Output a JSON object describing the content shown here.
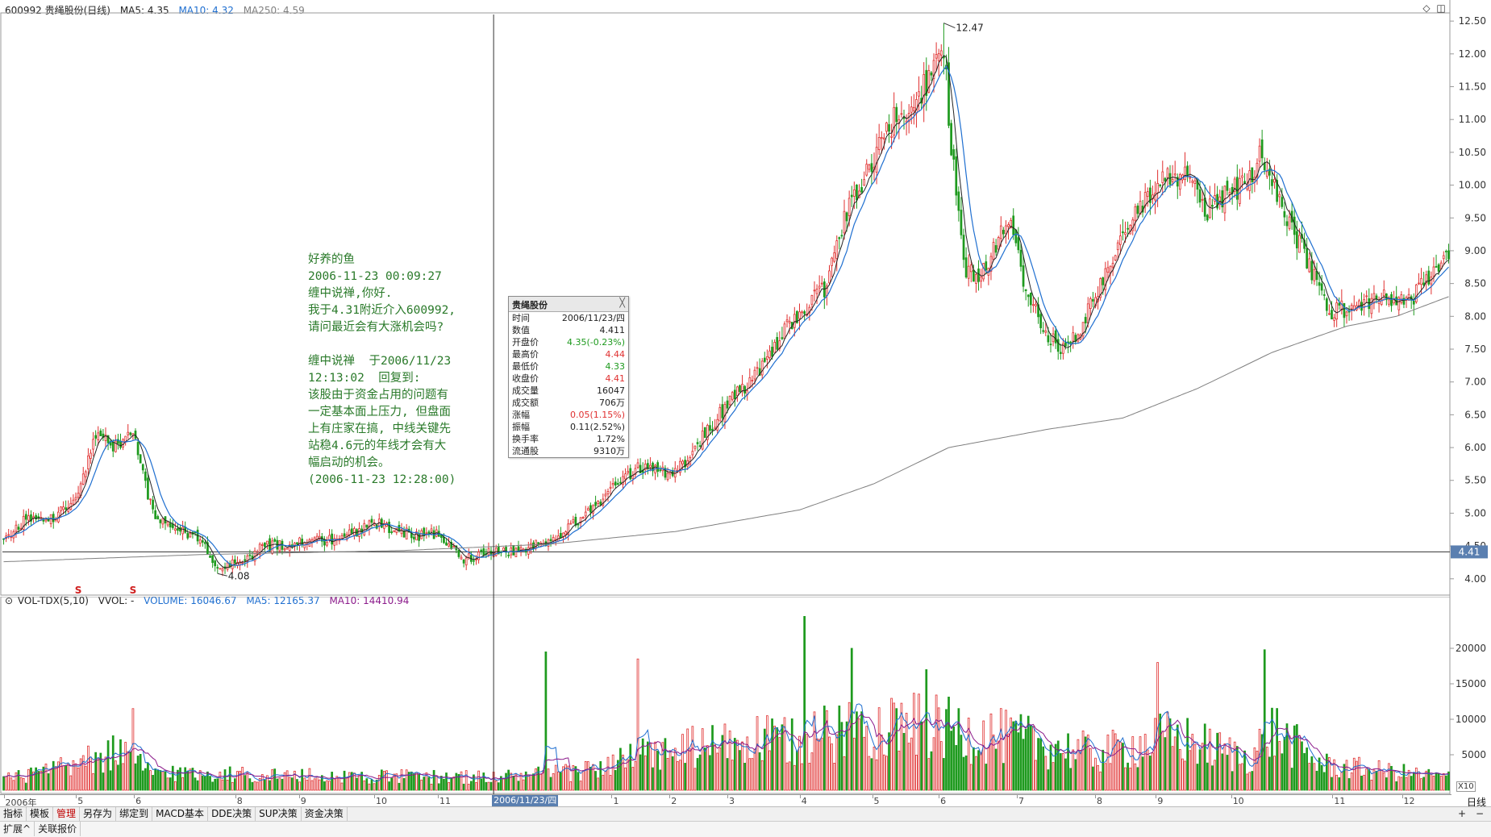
{
  "price_header": {
    "title": "600992 贵绳股份(日线)",
    "ma5_label": "MA5: 4.35",
    "ma10_label": "MA10: 4.32",
    "ma250_label": "MA250: 4.59"
  },
  "volume_header": {
    "indicator": "VOL-TDX(5,10)",
    "vvol": "VVOL: -",
    "volume": "VOLUME: 16046.67",
    "ma5": "MA5: 12165.37",
    "ma10": "MA10: 14410.94"
  },
  "colors": {
    "up": "#e03030",
    "down": "#1e9a1e",
    "ma5": "#222222",
    "ma10": "#1f6fd0",
    "ma250": "#808080",
    "vol_ma5": "#1f6fd0",
    "vol_ma10": "#8b1a8b",
    "annotation": "#2a7a2a",
    "cursor_label_bg": "#5a7fb0"
  },
  "annotation": {
    "lines": [
      "好养的鱼",
      "2006-11-23 00:09:27",
      "缠中说禅,你好.",
      "我于4.31附近介入600992,",
      "请问最近会有大涨机会吗?",
      "",
      "缠中说禅  于2006/11/23",
      "12:13:02  回复到:",
      "该股由于资金占用的问题有",
      "一定基本面上压力, 但盘面",
      "上有庄家在搞, 中线关键先",
      "站稳4.6元的年线才会有大",
      "幅启动的机会。",
      "(2006-11-23 12:28:00)"
    ]
  },
  "infobox": {
    "title": "贵绳股份",
    "close_glyph": "╳",
    "rows": [
      {
        "label": "时间",
        "value": "2006/11/23/四",
        "color": "#222"
      },
      {
        "label": "数值",
        "value": "4.411",
        "color": "#222"
      },
      {
        "label": "开盘价",
        "value": "4.35(-0.23%)",
        "color": "#1e9a1e"
      },
      {
        "label": "最高价",
        "value": "4.44",
        "color": "#e03030"
      },
      {
        "label": "最低价",
        "value": "4.33",
        "color": "#1e9a1e"
      },
      {
        "label": "收盘价",
        "value": "4.41",
        "color": "#e03030"
      },
      {
        "label": "成交量",
        "value": "16047",
        "color": "#222"
      },
      {
        "label": "成交额",
        "value": "706万",
        "color": "#222"
      },
      {
        "label": "涨幅",
        "value": "0.05(1.15%)",
        "color": "#e03030"
      },
      {
        "label": "振幅",
        "value": "0.11(2.52%)",
        "color": "#222"
      },
      {
        "label": "换手率",
        "value": "1.72%",
        "color": "#222"
      },
      {
        "label": "流通股",
        "value": "9310万",
        "color": "#222"
      }
    ]
  },
  "markers": {
    "high_label": "12.47",
    "low_label": "4.08",
    "current_price_tag": "4.41",
    "s_signal": "S"
  },
  "x_axis_months": [
    "2006年",
    "5",
    "6",
    "8",
    "9",
    "10",
    "11",
    "1",
    "2",
    "3",
    "4",
    "5",
    "6",
    "7",
    "8",
    "9",
    "10",
    "11",
    "12"
  ],
  "cursor_date": "2006/11/23/四",
  "period": "日线",
  "volume_scale_label": "X10",
  "tabs": [
    "指标",
    "模板",
    "管理",
    "另存为",
    "绑定到",
    "MACD基本",
    "DDE决策",
    "SUP决策",
    "资金决策"
  ],
  "active_tab": "管理",
  "status_items": [
    "扩展^",
    "关联报价"
  ],
  "zoom_controls": [
    "+",
    "−"
  ],
  "chart_data": [
    {
      "type": "candlestick",
      "title": "600992 贵绳股份(日线)",
      "y_ticks": [
        4.0,
        4.5,
        5.0,
        5.5,
        6.0,
        6.5,
        7.0,
        7.5,
        8.0,
        8.5,
        9.0,
        9.5,
        10.0,
        10.5,
        11.0,
        11.5,
        12.0,
        12.5
      ],
      "ylim": [
        3.85,
        12.6
      ],
      "x_period": "2006-04 to 2007-12 daily",
      "close_anchors": [
        {
          "t": 0,
          "v": 4.6
        },
        {
          "t": 10,
          "v": 4.95
        },
        {
          "t": 20,
          "v": 4.9
        },
        {
          "t": 30,
          "v": 5.3
        },
        {
          "t": 38,
          "v": 6.3
        },
        {
          "t": 45,
          "v": 6.0
        },
        {
          "t": 52,
          "v": 6.2
        },
        {
          "t": 60,
          "v": 5.0
        },
        {
          "t": 70,
          "v": 4.75
        },
        {
          "t": 80,
          "v": 4.6
        },
        {
          "t": 86,
          "v": 4.15
        },
        {
          "t": 95,
          "v": 4.25
        },
        {
          "t": 105,
          "v": 4.5
        },
        {
          "t": 120,
          "v": 4.55
        },
        {
          "t": 135,
          "v": 4.6
        },
        {
          "t": 150,
          "v": 4.85
        },
        {
          "t": 165,
          "v": 4.65
        },
        {
          "t": 175,
          "v": 4.7
        },
        {
          "t": 185,
          "v": 4.3
        },
        {
          "t": 197,
          "v": 4.41
        },
        {
          "t": 210,
          "v": 4.45
        },
        {
          "t": 225,
          "v": 4.7
        },
        {
          "t": 240,
          "v": 5.2
        },
        {
          "t": 255,
          "v": 5.7
        },
        {
          "t": 270,
          "v": 5.6
        },
        {
          "t": 280,
          "v": 6.1
        },
        {
          "t": 292,
          "v": 6.7
        },
        {
          "t": 305,
          "v": 7.2
        },
        {
          "t": 318,
          "v": 8.0
        },
        {
          "t": 330,
          "v": 8.4
        },
        {
          "t": 340,
          "v": 9.7
        },
        {
          "t": 350,
          "v": 10.4
        },
        {
          "t": 358,
          "v": 11.0
        },
        {
          "t": 365,
          "v": 11.2
        },
        {
          "t": 372,
          "v": 11.6
        },
        {
          "t": 378,
          "v": 12.1
        },
        {
          "t": 381,
          "v": 10.6
        },
        {
          "t": 386,
          "v": 8.8
        },
        {
          "t": 392,
          "v": 8.5
        },
        {
          "t": 398,
          "v": 9.0
        },
        {
          "t": 404,
          "v": 9.45
        },
        {
          "t": 410,
          "v": 8.6
        },
        {
          "t": 418,
          "v": 7.8
        },
        {
          "t": 425,
          "v": 7.5
        },
        {
          "t": 432,
          "v": 7.7
        },
        {
          "t": 440,
          "v": 8.4
        },
        {
          "t": 448,
          "v": 9.0
        },
        {
          "t": 456,
          "v": 9.6
        },
        {
          "t": 466,
          "v": 10.1
        },
        {
          "t": 476,
          "v": 10.1
        },
        {
          "t": 484,
          "v": 9.6
        },
        {
          "t": 492,
          "v": 9.9
        },
        {
          "t": 500,
          "v": 10.0
        },
        {
          "t": 506,
          "v": 10.5
        },
        {
          "t": 512,
          "v": 9.8
        },
        {
          "t": 520,
          "v": 9.2
        },
        {
          "t": 526,
          "v": 8.7
        },
        {
          "t": 532,
          "v": 8.1
        },
        {
          "t": 540,
          "v": 8.1
        },
        {
          "t": 548,
          "v": 8.25
        },
        {
          "t": 556,
          "v": 8.3
        },
        {
          "t": 564,
          "v": 8.2
        },
        {
          "t": 574,
          "v": 8.6
        },
        {
          "t": 581,
          "v": 8.9
        }
      ],
      "ma250_anchors": [
        {
          "t": 0,
          "v": 4.26
        },
        {
          "t": 80,
          "v": 4.37
        },
        {
          "t": 160,
          "v": 4.43
        },
        {
          "t": 220,
          "v": 4.53
        },
        {
          "t": 270,
          "v": 4.72
        },
        {
          "t": 320,
          "v": 5.05
        },
        {
          "t": 350,
          "v": 5.45
        },
        {
          "t": 380,
          "v": 6.0
        },
        {
          "t": 420,
          "v": 6.28
        },
        {
          "t": 450,
          "v": 6.45
        },
        {
          "t": 480,
          "v": 6.9
        },
        {
          "t": 510,
          "v": 7.45
        },
        {
          "t": 540,
          "v": 7.85
        },
        {
          "t": 560,
          "v": 8.0
        },
        {
          "t": 581,
          "v": 8.3
        }
      ],
      "high": 12.47,
      "low": 4.08,
      "current": 4.41
    },
    {
      "type": "bar",
      "title": "VOL-TDX(5,10)",
      "y_ticks": [
        5000,
        10000,
        15000,
        20000
      ],
      "ylim": [
        0,
        25000
      ],
      "volume_anchors": [
        {
          "t": 0,
          "v": 1500
        },
        {
          "t": 30,
          "v": 3500
        },
        {
          "t": 45,
          "v": 5500
        },
        {
          "t": 60,
          "v": 2500
        },
        {
          "t": 120,
          "v": 2000
        },
        {
          "t": 197,
          "v": 1800
        },
        {
          "t": 230,
          "v": 2500
        },
        {
          "t": 260,
          "v": 5000
        },
        {
          "t": 290,
          "v": 6500
        },
        {
          "t": 320,
          "v": 7000
        },
        {
          "t": 350,
          "v": 9500
        },
        {
          "t": 380,
          "v": 8500
        },
        {
          "t": 410,
          "v": 7000
        },
        {
          "t": 440,
          "v": 5000
        },
        {
          "t": 470,
          "v": 7500
        },
        {
          "t": 500,
          "v": 4500
        },
        {
          "t": 510,
          "v": 8500
        },
        {
          "t": 530,
          "v": 3500
        },
        {
          "t": 581,
          "v": 1800
        }
      ],
      "spikes": [
        {
          "t": 52,
          "v": 11500
        },
        {
          "t": 218,
          "v": 19500
        },
        {
          "t": 255,
          "v": 18500
        },
        {
          "t": 322,
          "v": 24500
        },
        {
          "t": 341,
          "v": 20000
        },
        {
          "t": 371,
          "v": 17000
        },
        {
          "t": 464,
          "v": 18000
        },
        {
          "t": 507,
          "v": 19800
        }
      ]
    }
  ]
}
